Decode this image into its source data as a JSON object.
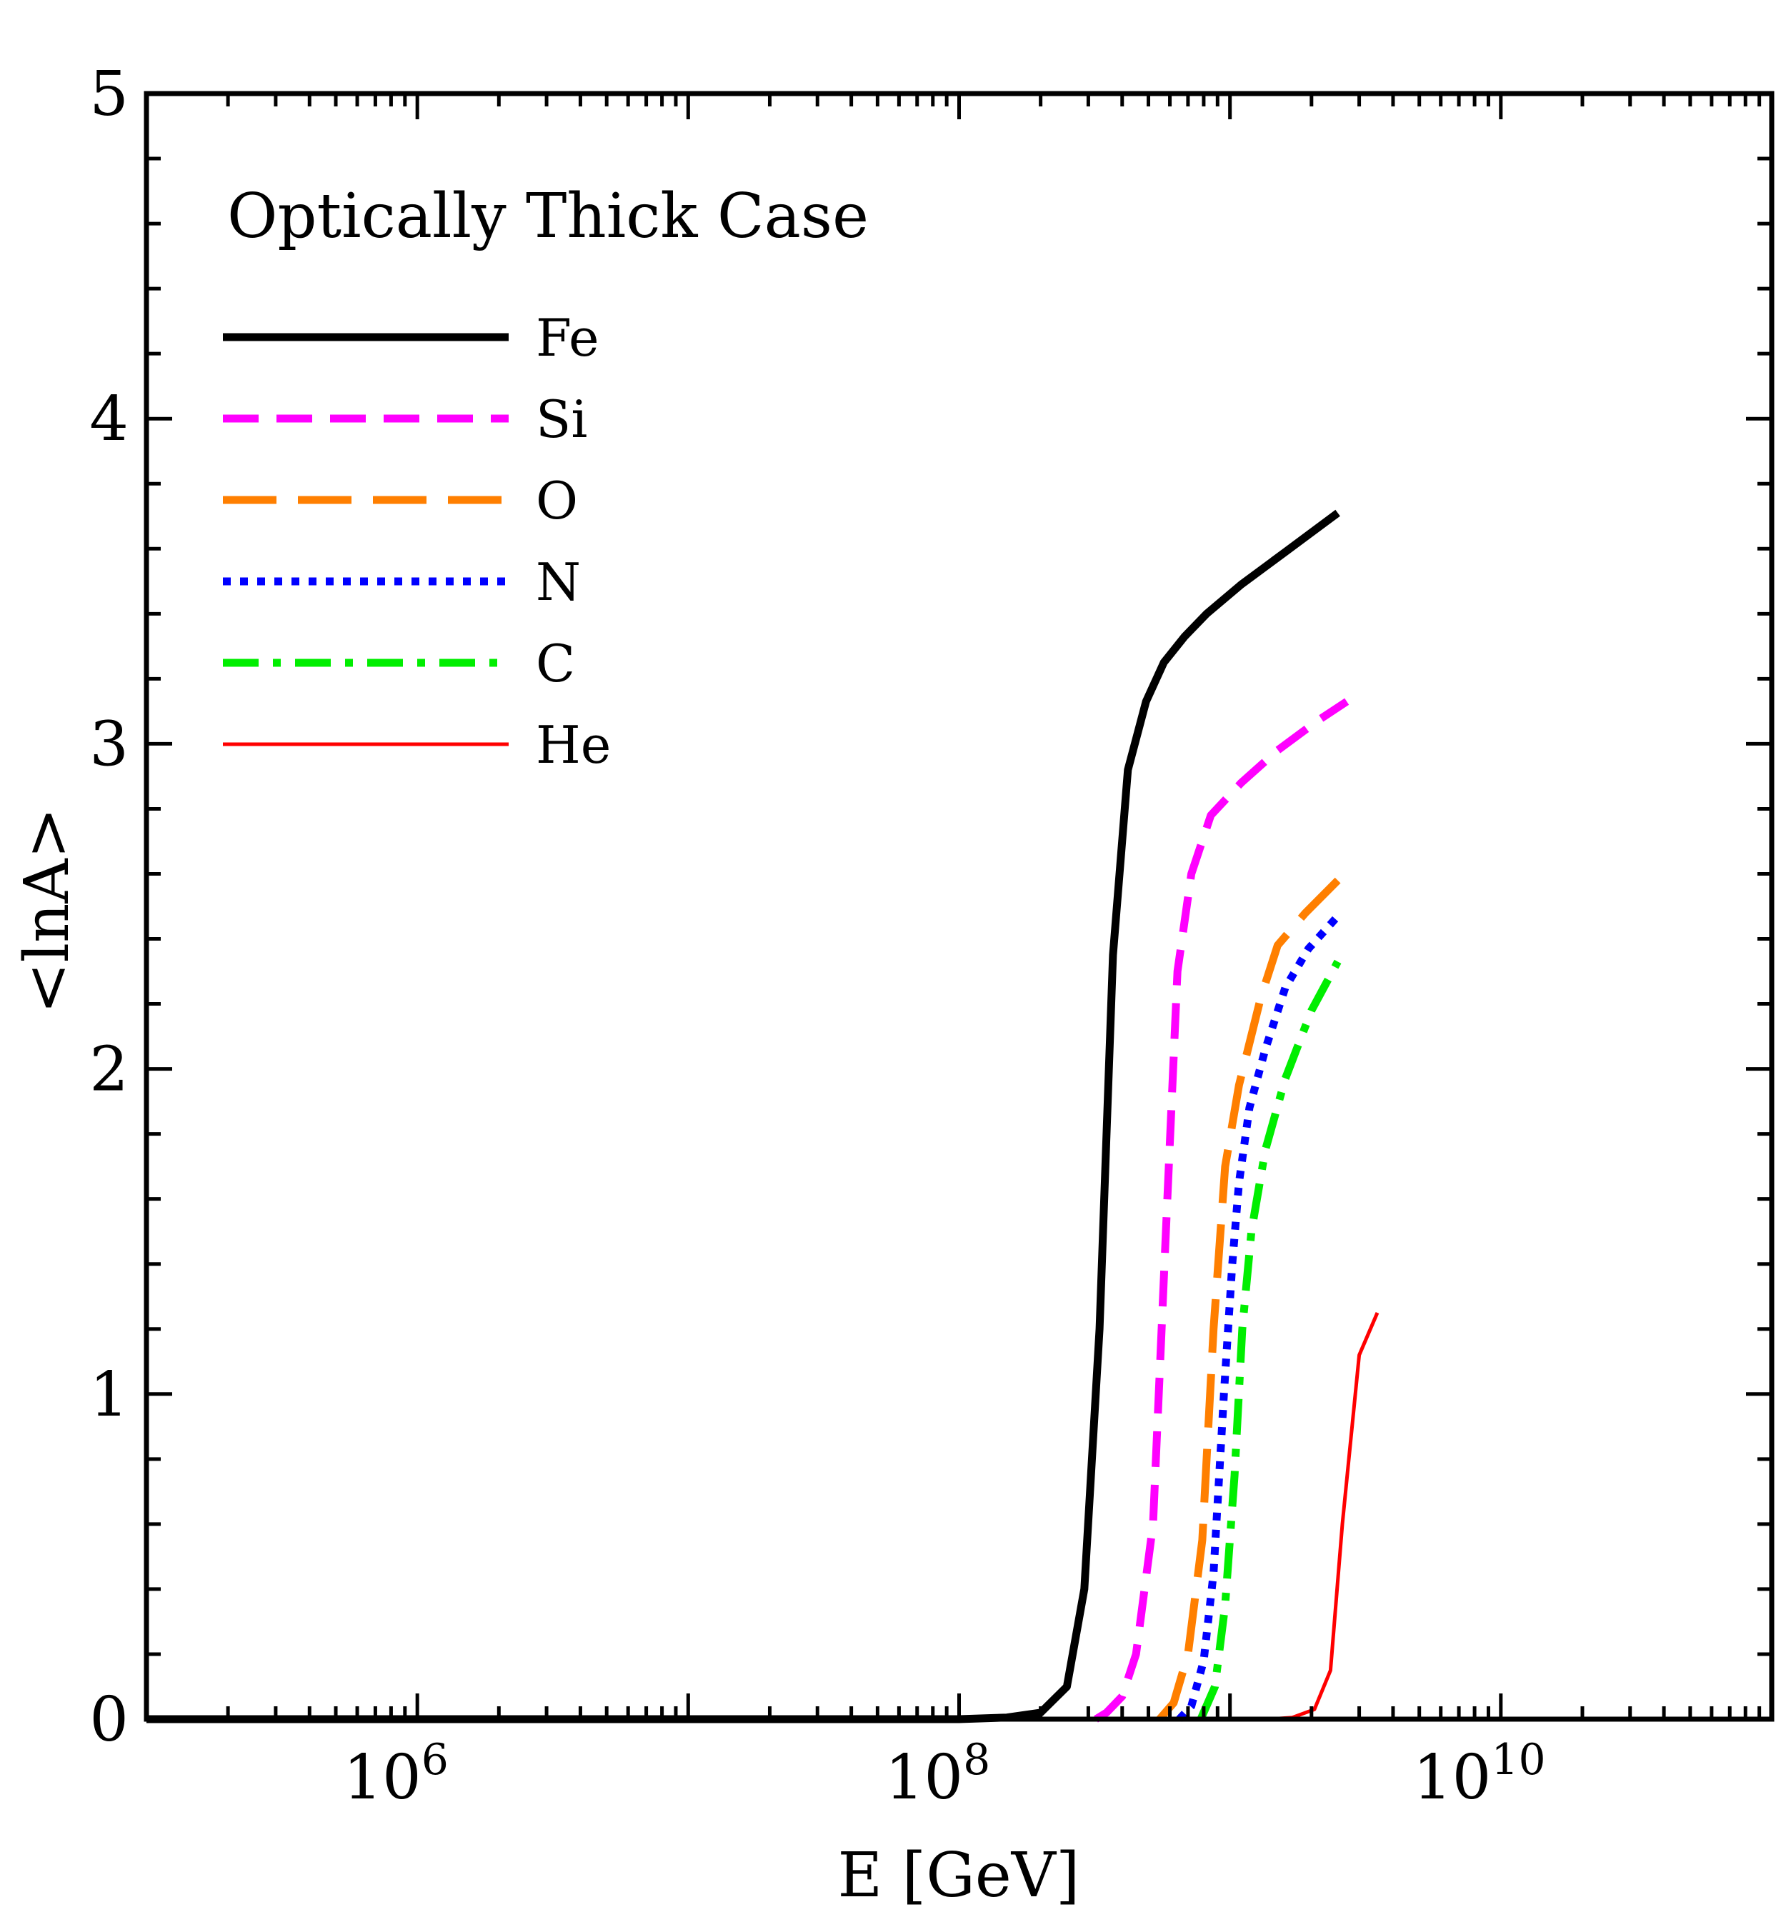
{
  "chart_data": {
    "type": "line",
    "title": "Optically Thick Case",
    "xlabel": "E [GeV]",
    "ylabel": "<lnA>",
    "xscale": "log",
    "xlim": [
      100000,
      100000000000
    ],
    "ylim": [
      0,
      5
    ],
    "x_tick_labels": [
      {
        "value": 1000000,
        "base": "10",
        "exp": "6"
      },
      {
        "value": 100000000,
        "base": "10",
        "exp": "8"
      },
      {
        "value": 10000000000,
        "base": "10",
        "exp": "10"
      }
    ],
    "y_tick_labels": [
      "0",
      "1",
      "2",
      "3",
      "4",
      "5"
    ],
    "legend_position": "top-left",
    "series": [
      {
        "name": "Fe",
        "color": "#000000",
        "style": "solid-thick",
        "points": [
          [
            100000,
            0
          ],
          [
            100000000,
            0
          ],
          [
            150000000,
            0.005
          ],
          [
            200000000,
            0.02
          ],
          [
            250000000,
            0.1
          ],
          [
            290000000,
            0.4
          ],
          [
            330000000,
            1.2
          ],
          [
            370000000,
            2.35
          ],
          [
            420000000,
            2.92
          ],
          [
            490000000,
            3.13
          ],
          [
            570000000,
            3.25
          ],
          [
            680000000,
            3.33
          ],
          [
            820000000,
            3.4
          ],
          [
            1100000000,
            3.49
          ],
          [
            1600000000,
            3.59
          ],
          [
            2500000000,
            3.71
          ]
        ]
      },
      {
        "name": "Si",
        "color": "#ff00ff",
        "style": "dashed",
        "points": [
          [
            320000000,
            0
          ],
          [
            350000000,
            0.02
          ],
          [
            400000000,
            0.07
          ],
          [
            450000000,
            0.2
          ],
          [
            520000000,
            0.6
          ],
          [
            580000000,
            1.5
          ],
          [
            640000000,
            2.3
          ],
          [
            720000000,
            2.6
          ],
          [
            850000000,
            2.78
          ],
          [
            1100000000,
            2.88
          ],
          [
            1500000000,
            2.98
          ],
          [
            2100000000,
            3.07
          ],
          [
            2700000000,
            3.13
          ]
        ]
      },
      {
        "name": "O",
        "color": "#ff7f00",
        "style": "long-dashed",
        "points": [
          [
            550000000,
            0
          ],
          [
            620000000,
            0.05
          ],
          [
            700000000,
            0.2
          ],
          [
            790000000,
            0.55
          ],
          [
            870000000,
            1.2
          ],
          [
            960000000,
            1.7
          ],
          [
            1080000000,
            1.95
          ],
          [
            1300000000,
            2.22
          ],
          [
            1500000000,
            2.38
          ],
          [
            1900000000,
            2.48
          ],
          [
            2500000000,
            2.58
          ]
        ]
      },
      {
        "name": "N",
        "color": "#0000ff",
        "style": "dotted",
        "points": [
          [
            650000000,
            0
          ],
          [
            720000000,
            0.04
          ],
          [
            800000000,
            0.18
          ],
          [
            870000000,
            0.45
          ],
          [
            950000000,
            1.0
          ],
          [
            1020000000,
            1.4
          ],
          [
            1080000000,
            1.65
          ],
          [
            1180000000,
            1.88
          ],
          [
            1350000000,
            2.06
          ],
          [
            1600000000,
            2.25
          ],
          [
            1950000000,
            2.37
          ],
          [
            2500000000,
            2.47
          ]
        ]
      },
      {
        "name": "C",
        "color": "#00ee00",
        "style": "dash-dot",
        "points": [
          [
            780000000,
            0
          ],
          [
            880000000,
            0.1
          ],
          [
            960000000,
            0.35
          ],
          [
            1040000000,
            0.75
          ],
          [
            1110000000,
            1.2
          ],
          [
            1200000000,
            1.5
          ],
          [
            1350000000,
            1.75
          ],
          [
            1600000000,
            1.97
          ],
          [
            2000000000,
            2.18
          ],
          [
            2500000000,
            2.33
          ]
        ]
      },
      {
        "name": "He",
        "color": "#ff0000",
        "style": "solid-thin",
        "points": [
          [
            1400000000,
            0
          ],
          [
            1700000000,
            0.005
          ],
          [
            2050000000,
            0.03
          ],
          [
            2350000000,
            0.15
          ],
          [
            2600000000,
            0.6
          ],
          [
            3000000000,
            1.12
          ],
          [
            3500000000,
            1.25
          ]
        ]
      }
    ]
  }
}
